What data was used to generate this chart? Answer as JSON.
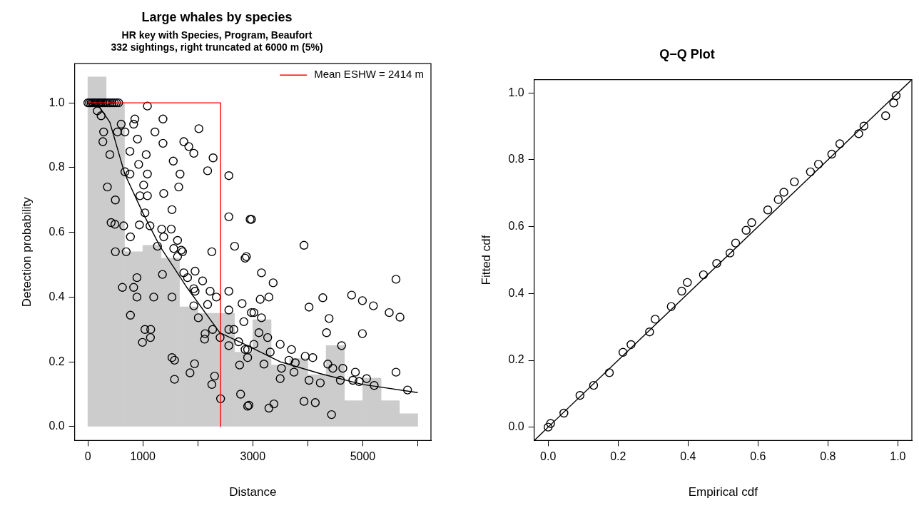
{
  "chart_data": [
    {
      "type": "histogram",
      "title": "Large whales by species",
      "subtitle": "HR key with Species, Program, Beaufort\n332 sightings, right truncated at 6000 m (5%)",
      "xlabel": "Distance",
      "ylabel": "Detection probability",
      "bins": [
        0,
        333,
        667,
        1000,
        1333,
        1667,
        2000,
        2333,
        2667,
        3000,
        3333,
        3667,
        4000,
        4333,
        4667,
        5000,
        5333,
        5667,
        6000
      ],
      "values": [
        1.08,
        1.0,
        0.54,
        0.56,
        0.52,
        0.37,
        0.35,
        0.35,
        0.23,
        0.33,
        0.19,
        0.21,
        0.16,
        0.25,
        0.08,
        0.15,
        0.08,
        0.04
      ],
      "color": "#cccccc",
      "series": [
        {
          "type": "scatter",
          "color": "#000000",
          "x": [
            0,
            30,
            60,
            90,
            120,
            150,
            180,
            210,
            240,
            270,
            300,
            330,
            360,
            400,
            440,
            480,
            520,
            560,
            172,
            241,
            287,
            273,
            400,
            355,
            500,
            423,
            492,
            500,
            651,
            697,
            774,
            628,
            833,
            893,
            893,
            774,
            1038,
            1143,
            993,
            1138,
            1198,
            1357,
            1530,
            1530,
            1576,
            1576,
            1858,
            1940,
            1927,
            2009,
            2123,
            2255,
            2305,
            2414,
            2255,
            2564,
            2564,
            2564,
            2564,
            2564,
            2669,
            2860,
            2805,
            2951,
            2760,
            2778,
            2906,
            2019,
            2178,
            2278,
            1927,
            1745,
            1836,
            1676,
            1653,
            1553,
            1366,
            1366,
            1220,
            1083,
            855,
            1380,
            1530,
            1517,
            1631,
            1699,
            1722,
            1343,
            1380,
            1266,
            1130,
            1038,
            1083,
            1015,
            947,
            938,
            1083,
            1061,
            924,
            765,
            674,
            765,
            902,
            674,
            606,
            538,
            833,
            1562,
            1631,
            1745,
            1813,
            1950,
            1927,
            2087,
            2223,
            2337,
            2178,
            1950,
            2269,
            2405,
            2564,
            2655,
            2837,
            2974,
            2860,
            2906,
            2742,
            2132,
            2975,
            2883,
            3157,
            3370,
            3134,
            3293,
            3020,
            3157,
            3111,
            3270,
            3020,
            2906,
            3316,
            3498,
            3703,
            3658,
            3772,
            3521,
            3749,
            3498,
            3203,
            2929,
            3293,
            3384,
            3931,
            4023,
            4273,
            4387,
            4341,
            3953,
            4090,
            4023,
            3931,
            4136,
            4227,
            4364,
            4455,
            4615,
            4637,
            4592,
            4432,
            4797,
            4993,
            5193,
            4993,
            4865,
            5070,
            4934,
            5207,
            5481,
            5677,
            5604,
            5604,
            5814,
            4820
          ],
          "values": [
            1,
            1,
            1,
            1,
            1,
            1,
            1,
            1,
            1,
            1,
            1,
            1,
            1,
            1,
            1,
            1,
            1,
            1,
            0.975,
            0.96,
            0.91,
            0.88,
            0.84,
            0.74,
            0.7,
            0.63,
            0.625,
            0.54,
            0.62,
            0.54,
            0.586,
            0.43,
            0.43,
            0.46,
            0.4,
            0.344,
            0.3,
            0.3,
            0.26,
            0.275,
            0.4,
            0.47,
            0.4,
            0.213,
            0.205,
            0.146,
            0.166,
            0.194,
            0.373,
            0.336,
            0.27,
            0.13,
            0.156,
            0.086,
            0.54,
            0.775,
            0.648,
            0.418,
            0.36,
            0.25,
            0.557,
            0.52,
            0.38,
            0.64,
            0.19,
            0.1,
            0.063,
            0.92,
            0.79,
            0.83,
            0.844,
            0.88,
            0.865,
            0.78,
            0.74,
            0.82,
            0.95,
            0.875,
            0.91,
            0.99,
            0.95,
            0.72,
            0.67,
            0.61,
            0.575,
            0.545,
            0.54,
            0.61,
            0.586,
            0.557,
            0.62,
            0.66,
            0.713,
            0.746,
            0.713,
            0.623,
            0.78,
            0.84,
            0.81,
            0.85,
            0.787,
            0.78,
            0.888,
            0.91,
            0.934,
            0.91,
            0.934,
            0.55,
            0.525,
            0.475,
            0.46,
            0.48,
            0.426,
            0.45,
            0.418,
            0.4,
            0.377,
            0.418,
            0.3,
            0.275,
            0.3,
            0.3,
            0.324,
            0.352,
            0.238,
            0.213,
            0.262,
            0.287,
            0.64,
            0.525,
            0.475,
            0.444,
            0.393,
            0.4,
            0.352,
            0.336,
            0.29,
            0.275,
            0.254,
            0.238,
            0.23,
            0.254,
            0.238,
            0.205,
            0.197,
            0.18,
            0.168,
            0.148,
            0.193,
            0.066,
            0.057,
            0.07,
            0.56,
            0.369,
            0.398,
            0.334,
            0.29,
            0.217,
            0.213,
            0.143,
            0.078,
            0.074,
            0.135,
            0.193,
            0.18,
            0.25,
            0.18,
            0.143,
            0.037,
            0.406,
            0.389,
            0.373,
            0.287,
            0.168,
            0.148,
            0.139,
            0.127,
            0.352,
            0.338,
            0.455,
            0.168,
            0.113,
            0.143
          ]
        },
        {
          "type": "line",
          "marker": "none",
          "color": "#000000",
          "x": [
            0,
            200,
            400,
            672,
            1000,
            1310,
            1800,
            2400,
            2855,
            3500,
            4220,
            5000,
            6000
          ],
          "values": [
            1,
            0.99,
            0.94,
            0.78,
            0.66,
            0.557,
            0.43,
            0.29,
            0.254,
            0.2,
            0.164,
            0.13,
            0.105
          ]
        },
        {
          "type": "line",
          "marker": "none",
          "name": "Mean ESHW = 2414 m",
          "color": "#ff0000",
          "x": [
            0,
            2414,
            2414
          ],
          "values": [
            1,
            1,
            0
          ]
        }
      ],
      "marker": "circle",
      "legend": "top right",
      "xlim": [
        -240,
        6240
      ],
      "xticks": [
        0,
        1000,
        {
          "value": 2000,
          "label": null
        },
        3000,
        {
          "value": 4000,
          "label": null
        },
        5000,
        {
          "value": 6000,
          "label": null
        }
      ],
      "ylim": [
        -0.043,
        1.121
      ],
      "yticks": [
        {
          "value": 0,
          "label": "0.0"
        },
        {
          "value": 0.2,
          "label": "0.2"
        },
        {
          "value": 0.4,
          "label": "0.4"
        },
        {
          "value": 0.6,
          "label": "0.6"
        },
        {
          "value": 0.8,
          "label": "0.8"
        },
        {
          "value": 1,
          "label": "1.0"
        }
      ]
    },
    {
      "type": "scatter",
      "title": "Q−Q Plot",
      "xlabel": "Empirical cdf",
      "ylabel": "Fitted cdf",
      "series": [
        {
          "color": "#000000",
          "x": [
            0,
            0.007,
            0.045,
            0.091,
            0.13,
            0.175,
            0.214,
            0.237,
            0.29,
            0.306,
            0.352,
            0.382,
            0.398,
            0.444,
            0.482,
            0.52,
            0.536,
            0.566,
            0.582,
            0.628,
            0.658,
            0.674,
            0.704,
            0.75,
            0.773,
            0.811,
            0.834,
            0.888,
            0.903,
            0.965,
            0.988,
            0.995
          ],
          "values": [
            0,
            0.011,
            0.042,
            0.095,
            0.125,
            0.163,
            0.224,
            0.247,
            0.285,
            0.323,
            0.361,
            0.407,
            0.433,
            0.456,
            0.49,
            0.521,
            0.551,
            0.589,
            0.612,
            0.65,
            0.681,
            0.703,
            0.734,
            0.764,
            0.787,
            0.817,
            0.848,
            0.878,
            0.901,
            0.932,
            0.97,
            0.992
          ]
        },
        {
          "type": "line",
          "marker": "none",
          "color": "#000000",
          "x": [
            -0.04,
            1.04
          ],
          "values": [
            -0.04,
            1.04
          ]
        }
      ],
      "marker": "circle",
      "xlim": [
        -0.04,
        1.04
      ],
      "xticks": [
        {
          "value": 0,
          "label": "0.0"
        },
        {
          "value": 0.2,
          "label": "0.2"
        },
        {
          "value": 0.4,
          "label": "0.4"
        },
        {
          "value": 0.6,
          "label": "0.6"
        },
        {
          "value": 0.8,
          "label": "0.8"
        },
        {
          "value": 1,
          "label": "1.0"
        }
      ],
      "ylim": [
        -0.04,
        1.04
      ],
      "yticks": [
        {
          "value": 0,
          "label": "0.0"
        },
        {
          "value": 0.2,
          "label": "0.2"
        },
        {
          "value": 0.4,
          "label": "0.4"
        },
        {
          "value": 0.6,
          "label": "0.6"
        },
        {
          "value": 0.8,
          "label": "0.8"
        },
        {
          "value": 1,
          "label": "1.0"
        }
      ]
    }
  ]
}
